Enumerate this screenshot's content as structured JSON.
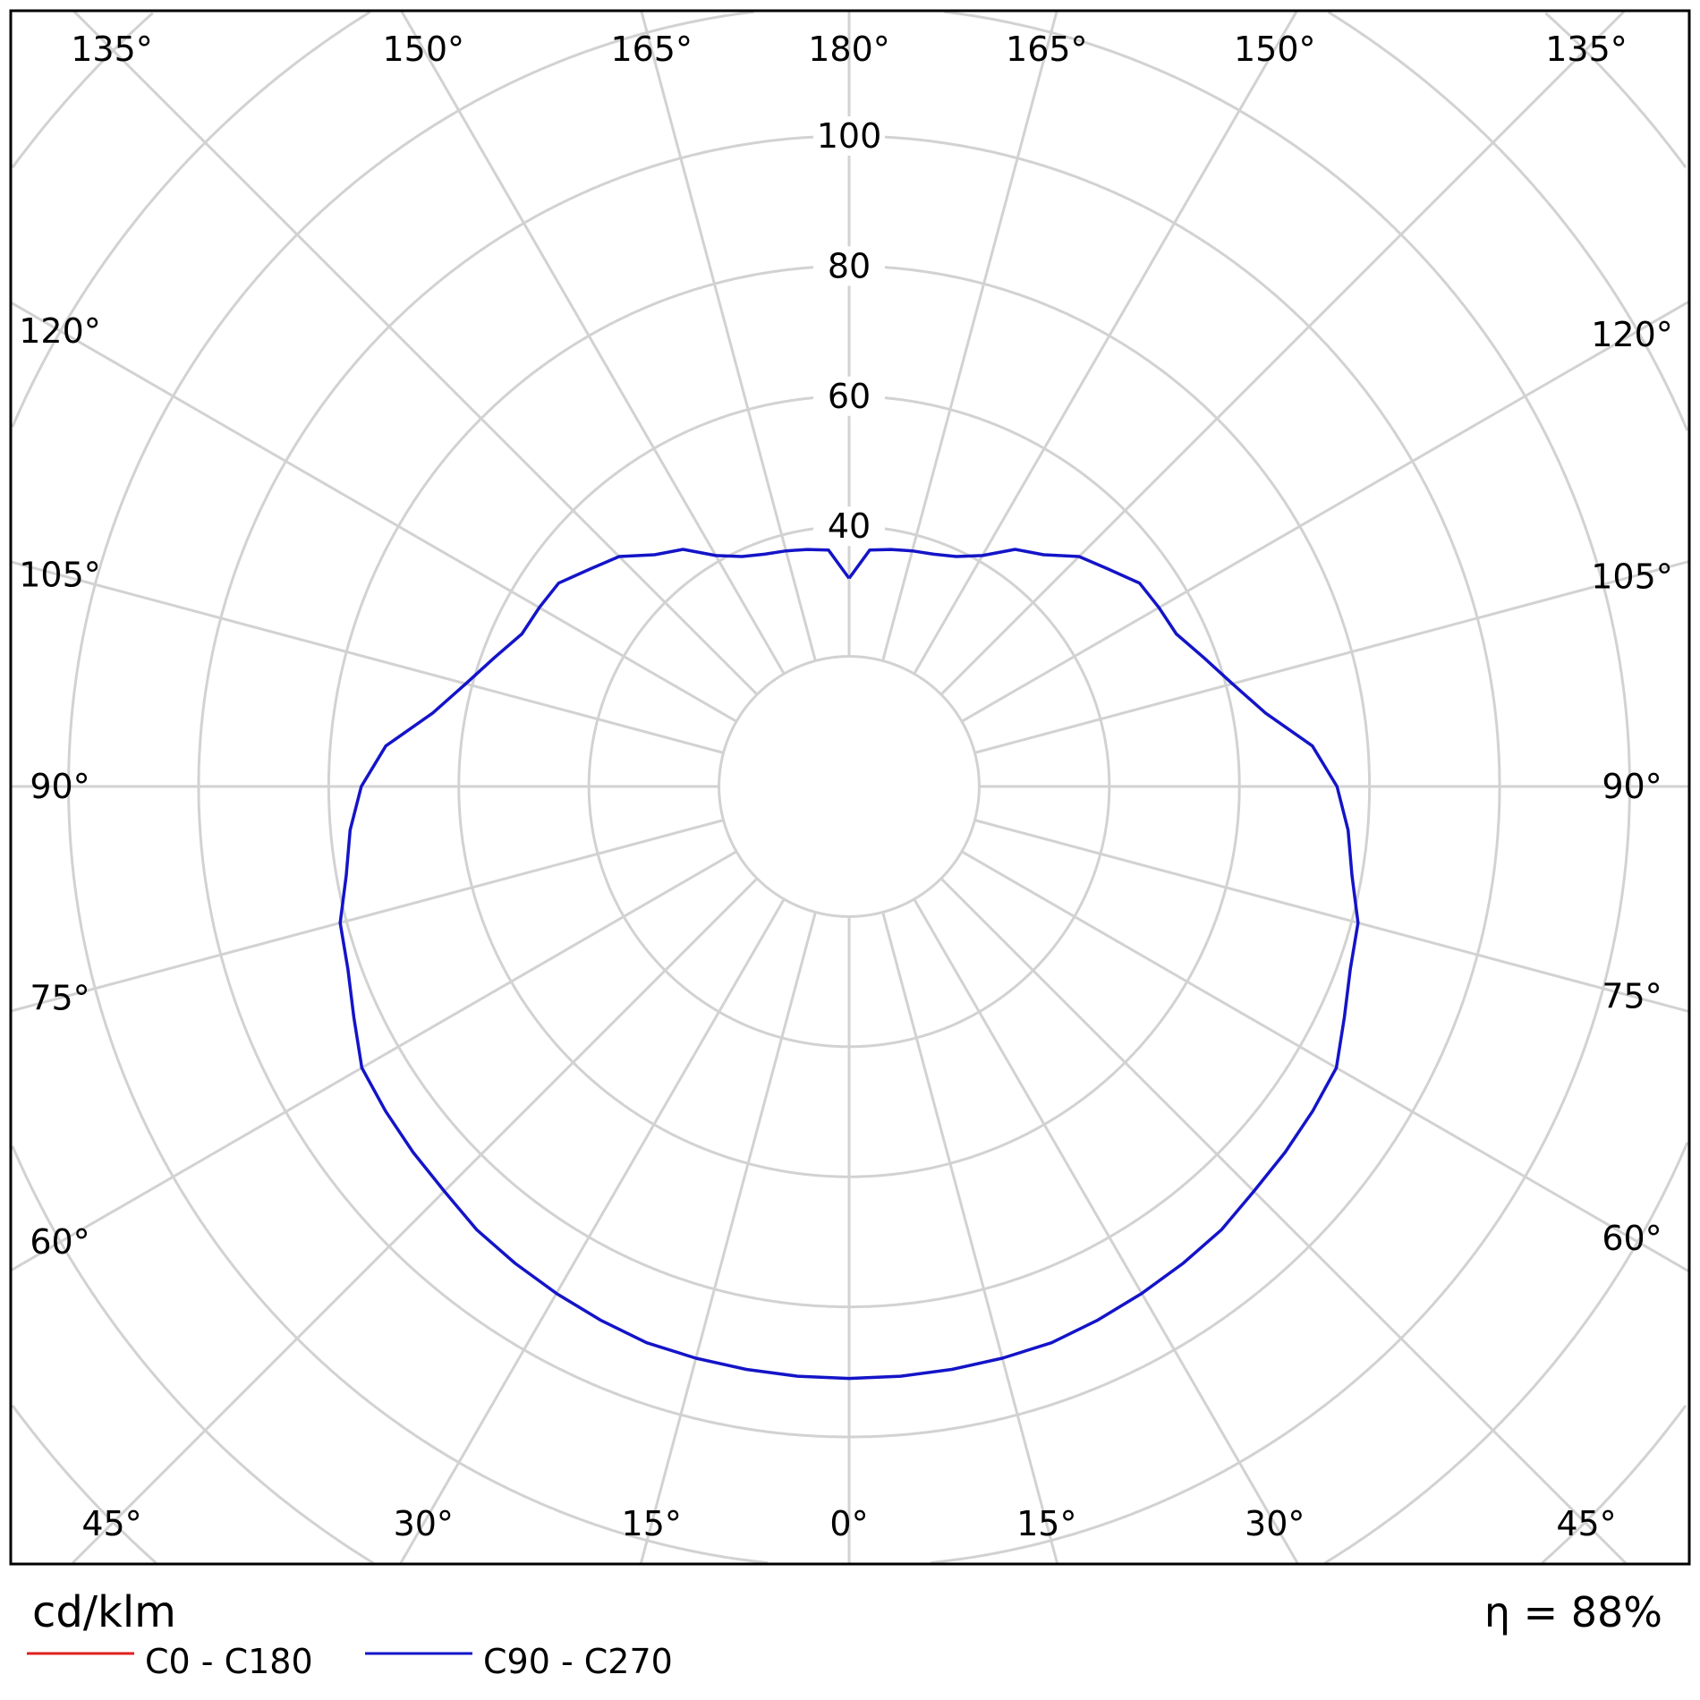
{
  "chart_data": {
    "type": "polar",
    "unit_label": "cd/klm",
    "efficiency_label": "η = 88%",
    "radial_ticks": [
      40,
      60,
      80,
      100
    ],
    "radial_grid_step": 20,
    "angle_ticks_deg": [
      0,
      15,
      30,
      45,
      60,
      75,
      90,
      105,
      120,
      135,
      150,
      165,
      180
    ],
    "grid": true,
    "legend_placement": "bottom-left",
    "series": [
      {
        "name": "C0 - C180",
        "color": "#e02020",
        "angles_deg": [],
        "values": []
      },
      {
        "name": "C90 - C270",
        "color": "#1414c8",
        "symmetric": true,
        "angles_deg": [
          0,
          5,
          10,
          15,
          20,
          25,
          30,
          35,
          40,
          45,
          50,
          55,
          60,
          65,
          70,
          75,
          80,
          85,
          90,
          95,
          100,
          105,
          110,
          115,
          120,
          125,
          130,
          135,
          140,
          145,
          150,
          155,
          160,
          165,
          170,
          175,
          180
        ],
        "values": [
          91,
          91,
          91,
          91,
          91,
          90.5,
          90,
          89.5,
          89,
          88,
          87.5,
          87,
          86.5,
          84,
          82,
          81,
          78.5,
          77,
          75,
          71.5,
          65,
          61,
          58,
          55.5,
          55,
          54.5,
          52,
          50,
          46.5,
          44.5,
          41,
          39,
          38,
          37.5,
          37,
          36.5,
          32
        ]
      }
    ]
  }
}
